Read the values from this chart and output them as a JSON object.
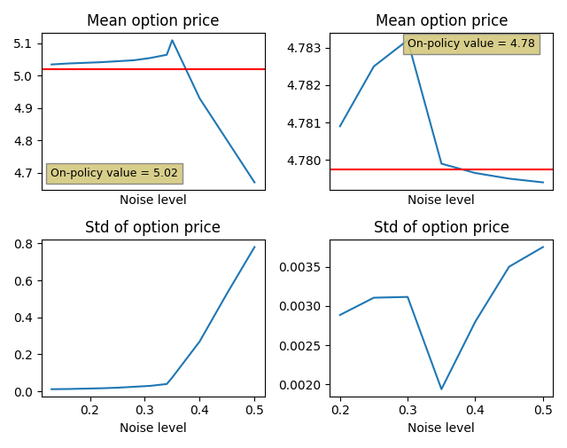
{
  "top_left": {
    "title": "Mean option price",
    "xlabel": "Noise level",
    "x": [
      0.13,
      0.16,
      0.19,
      0.22,
      0.25,
      0.28,
      0.31,
      0.34,
      0.35,
      0.4,
      0.45,
      0.5
    ],
    "y": [
      5.035,
      5.038,
      5.04,
      5.042,
      5.045,
      5.048,
      5.055,
      5.065,
      5.11,
      4.93,
      4.8,
      4.67
    ],
    "hline": 5.02,
    "hline_label": "On-policy value = 5.02",
    "line_color": "#1f77b4",
    "hline_color": "red",
    "show_xticks": false
  },
  "top_right": {
    "title": "Mean option price",
    "xlabel": "Noise level",
    "x": [
      0.2,
      0.25,
      0.3,
      0.35,
      0.4,
      0.45,
      0.5
    ],
    "y": [
      4.7809,
      4.7825,
      4.7832,
      4.7799,
      4.77965,
      4.7795,
      4.7794
    ],
    "hline": 4.77975,
    "hline_label": "On-policy value = 4.78",
    "line_color": "#1f77b4",
    "hline_color": "red",
    "show_xticks": false
  },
  "bot_left": {
    "title": "Std of option price",
    "xlabel": "Noise level",
    "x": [
      0.13,
      0.16,
      0.19,
      0.22,
      0.25,
      0.28,
      0.31,
      0.34,
      0.35,
      0.4,
      0.45,
      0.5
    ],
    "y": [
      0.012,
      0.013,
      0.015,
      0.017,
      0.02,
      0.025,
      0.03,
      0.04,
      0.075,
      0.27,
      0.53,
      0.78
    ],
    "line_color": "#1f77b4",
    "show_xticks": true
  },
  "bot_right": {
    "title": "Std of option price",
    "xlabel": "Noise level",
    "x": [
      0.2,
      0.25,
      0.3,
      0.35,
      0.4,
      0.45,
      0.5
    ],
    "y": [
      0.002885,
      0.003105,
      0.003115,
      0.00194,
      0.0028,
      0.0035,
      0.00375
    ],
    "line_color": "#1f77b4",
    "show_xticks": true
  }
}
